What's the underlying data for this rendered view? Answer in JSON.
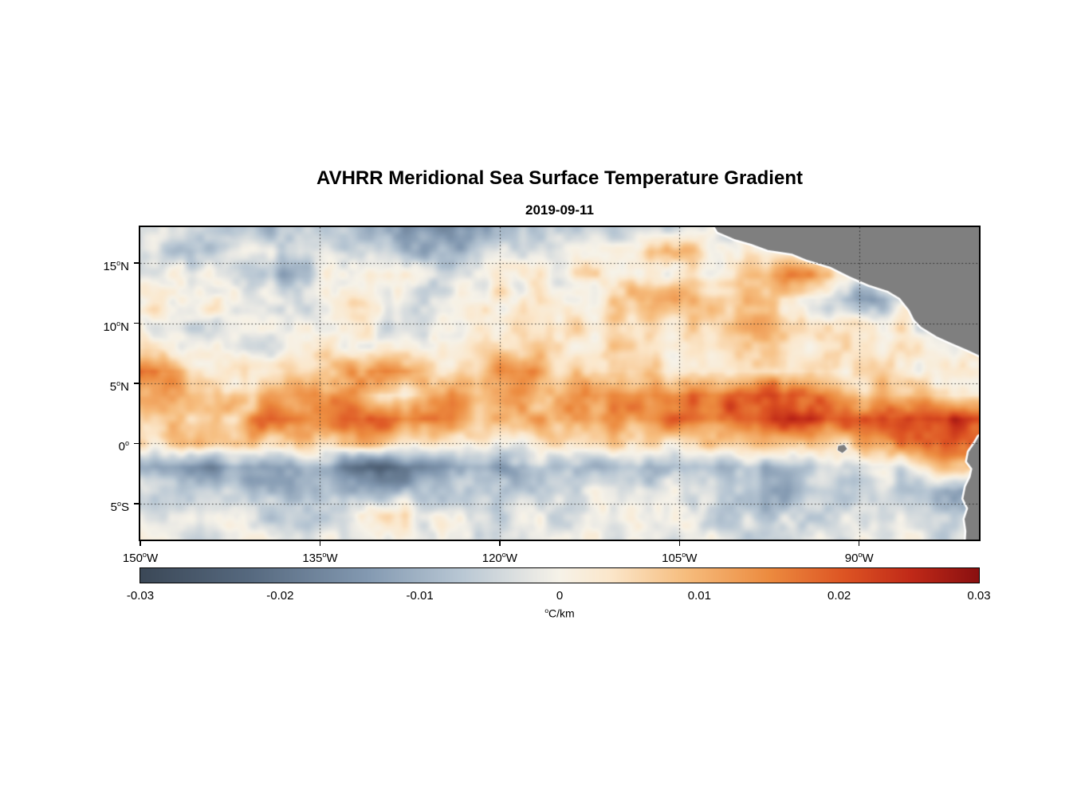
{
  "chart_data": {
    "type": "heatmap",
    "title": "AVHRR Meridional Sea Surface Temperature Gradient",
    "subtitle": "2019-09-11",
    "lon_range": [
      -150,
      -80
    ],
    "lat_range": [
      -8,
      18
    ],
    "x_axis": {
      "ticks": [
        {
          "value": -150,
          "label": "150°W"
        },
        {
          "value": -135,
          "label": "135°W"
        },
        {
          "value": -120,
          "label": "120°W"
        },
        {
          "value": -105,
          "label": "105°W"
        },
        {
          "value": -90,
          "label": "90°W"
        }
      ]
    },
    "y_axis": {
      "ticks": [
        {
          "value": 15,
          "label": "15°N"
        },
        {
          "value": 10,
          "label": "10°N"
        },
        {
          "value": 5,
          "label": "5°N"
        },
        {
          "value": 0,
          "label": "0°"
        },
        {
          "value": -5,
          "label": "5°S"
        }
      ]
    },
    "colorbar": {
      "range": [
        -0.03,
        0.03
      ],
      "values": [
        -0.03,
        -0.02,
        -0.01,
        0,
        0.01,
        0.02,
        0.03
      ],
      "labels": [
        "-0.03",
        "-0.02",
        "-0.01",
        "0",
        "0.01",
        "0.02",
        "0.03"
      ],
      "label": "°C/km"
    },
    "colormap": [
      {
        "t": 0.0,
        "color": "#3b4857"
      },
      {
        "t": 0.13,
        "color": "#56697f"
      },
      {
        "t": 0.27,
        "color": "#8399b1"
      },
      {
        "t": 0.38,
        "color": "#b7c6d3"
      },
      {
        "t": 0.47,
        "color": "#e8e8e4"
      },
      {
        "t": 0.5,
        "color": "#f6f2e8"
      },
      {
        "t": 0.56,
        "color": "#fbe7cb"
      },
      {
        "t": 0.65,
        "color": "#f6bd7e"
      },
      {
        "t": 0.75,
        "color": "#ec8b3f"
      },
      {
        "t": 0.84,
        "color": "#dd5423"
      },
      {
        "t": 0.92,
        "color": "#c02918"
      },
      {
        "t": 1.0,
        "color": "#8a1010"
      }
    ],
    "field": {
      "description": "Meridional SST gradient sampled on a regular lon/lat grid; values are gradient x 1000 in °C/km",
      "lon_start": -150,
      "lon_step": 2,
      "lat_start": 18,
      "lat_step": -2,
      "scale": 0.001,
      "units": "°C/km",
      "values": [
        [
          -3,
          -4,
          -3,
          -5,
          -8,
          -9,
          -6,
          -4,
          -5,
          -7,
          -9,
          -12,
          -16,
          -18,
          -16,
          -12,
          -7,
          -6,
          -4,
          -3,
          -4,
          -5,
          -4,
          -3,
          -2,
          -1,
          0,
          0,
          1,
          1,
          0,
          0,
          0,
          0,
          0,
          0
        ],
        [
          -4,
          -6,
          -8,
          -7,
          -5,
          -4,
          -3,
          -2,
          -2,
          -3,
          -5,
          -8,
          -10,
          -10,
          -8,
          -5,
          -2,
          0,
          1,
          0,
          2,
          5,
          10,
          6,
          3,
          2,
          1,
          0,
          0,
          0,
          0,
          0,
          0,
          0,
          0,
          0
        ],
        [
          -2,
          -1,
          0,
          -2,
          -4,
          -6,
          -10,
          -6,
          0,
          4,
          5,
          2,
          -2,
          -4,
          -3,
          -1,
          0,
          1,
          0,
          2,
          4,
          3,
          2,
          3,
          4,
          6,
          10,
          14,
          12,
          6,
          0,
          0,
          0,
          0,
          0,
          0
        ],
        [
          0,
          1,
          2,
          1,
          0,
          -2,
          -3,
          -1,
          1,
          3,
          2,
          0,
          -1,
          0,
          1,
          2,
          3,
          2,
          1,
          2,
          6,
          10,
          12,
          10,
          8,
          10,
          8,
          4,
          0,
          -6,
          -12,
          -10,
          0,
          0,
          0,
          0
        ],
        [
          1,
          0,
          -1,
          -2,
          -4,
          -3,
          -1,
          1,
          2,
          1,
          -1,
          -3,
          -2,
          0,
          2,
          4,
          5,
          3,
          2,
          4,
          6,
          5,
          4,
          6,
          8,
          10,
          9,
          6,
          3,
          2,
          4,
          2,
          0,
          0,
          0,
          0
        ],
        [
          2,
          1,
          0,
          -1,
          -2,
          -1,
          0,
          2,
          3,
          2,
          0,
          -1,
          0,
          2,
          4,
          6,
          7,
          5,
          3,
          5,
          4,
          3,
          2,
          4,
          6,
          8,
          8,
          6,
          4,
          3,
          2,
          3,
          2,
          1,
          0,
          0
        ],
        [
          20,
          16,
          8,
          2,
          1,
          2,
          3,
          4,
          6,
          12,
          16,
          15,
          8,
          4,
          8,
          18,
          16,
          10,
          5,
          4,
          4,
          4,
          4,
          5,
          5,
          6,
          6,
          5,
          4,
          3,
          3,
          4,
          3,
          2,
          2,
          2
        ],
        [
          10,
          12,
          10,
          6,
          8,
          12,
          12,
          12,
          14,
          12,
          3,
          3,
          10,
          14,
          10,
          12,
          12,
          10,
          12,
          14,
          14,
          14,
          16,
          20,
          18,
          20,
          22,
          22,
          20,
          14,
          10,
          8,
          8,
          7,
          6,
          6
        ],
        [
          6,
          6,
          6,
          6,
          6,
          16,
          16,
          12,
          14,
          18,
          18,
          18,
          18,
          16,
          10,
          8,
          8,
          12,
          14,
          12,
          12,
          14,
          16,
          18,
          16,
          20,
          22,
          24,
          24,
          20,
          18,
          20,
          22,
          24,
          26,
          24
        ],
        [
          4,
          5,
          7,
          8,
          8,
          8,
          6,
          5,
          7,
          8,
          8,
          7,
          6,
          4,
          3,
          2,
          2,
          3,
          4,
          4,
          4,
          5,
          6,
          8,
          6,
          8,
          12,
          10,
          8,
          6,
          10,
          14,
          16,
          18,
          20,
          16
        ],
        [
          -8,
          -12,
          -16,
          -18,
          -14,
          -10,
          -10,
          -12,
          -14,
          -20,
          -22,
          -20,
          -14,
          -10,
          -12,
          -14,
          -12,
          -8,
          -6,
          -8,
          -8,
          -10,
          -8,
          -6,
          -8,
          -8,
          -10,
          -8,
          -6,
          -4,
          -6,
          -4,
          0,
          4,
          8,
          6
        ],
        [
          -4,
          -5,
          -8,
          -6,
          -5,
          -8,
          -10,
          -12,
          -10,
          -12,
          -10,
          -8,
          -6,
          -6,
          -8,
          -8,
          -8,
          -6,
          -4,
          -3,
          -4,
          -4,
          -4,
          -3,
          -4,
          -6,
          -10,
          -12,
          -8,
          -6,
          -4,
          -4,
          -5,
          -8,
          -14,
          -10
        ],
        [
          -2,
          -3,
          -4,
          -3,
          -2,
          -3,
          -4,
          -5,
          -3,
          2,
          5,
          4,
          0,
          -3,
          -4,
          -3,
          -2,
          -3,
          -4,
          -2,
          -2,
          -3,
          -2,
          -2,
          -3,
          -5,
          -8,
          -6,
          -4,
          -3,
          -2,
          -3,
          -4,
          -5,
          -6,
          -4
        ],
        [
          -2,
          -2,
          -3,
          -2,
          -1,
          -2,
          -3,
          -2,
          -1,
          0,
          1,
          0,
          -1,
          -2,
          -2,
          -1,
          0,
          -1,
          -2,
          -1,
          -1,
          -2,
          -1,
          -1,
          -2,
          -3,
          -4,
          -3,
          -2,
          -2,
          -1,
          -2,
          -2,
          -3,
          -3,
          -2
        ]
      ]
    },
    "land": {
      "color": "#7f7f7f",
      "outline": "#ffffff",
      "features": [
        {
          "name": "central-america",
          "outline_width": 5,
          "polygon": [
            [
              -102.4,
              18.6
            ],
            [
              -101.8,
              17.6
            ],
            [
              -100.4,
              17.0
            ],
            [
              -99.0,
              16.6
            ],
            [
              -97.6,
              16.1
            ],
            [
              -95.6,
              15.8
            ],
            [
              -94.4,
              15.3
            ],
            [
              -92.4,
              14.7
            ],
            [
              -90.8,
              13.9
            ],
            [
              -89.2,
              13.2
            ],
            [
              -87.6,
              12.7
            ],
            [
              -86.6,
              12.1
            ],
            [
              -85.8,
              11.1
            ],
            [
              -85.4,
              10.3
            ],
            [
              -84.8,
              9.7
            ],
            [
              -83.5,
              8.9
            ],
            [
              -82.4,
              8.4
            ],
            [
              -81.0,
              7.8
            ],
            [
              -79.5,
              7.1
            ],
            [
              -79.0,
              6.9
            ],
            [
              -79.0,
              18.6
            ]
          ]
        },
        {
          "name": "south-america",
          "outline_width": 5,
          "polygon": [
            [
              -79.0,
              0.9
            ],
            [
              -80.0,
              0.6
            ],
            [
              -80.3,
              0.1
            ],
            [
              -80.85,
              -0.7
            ],
            [
              -81.0,
              -1.5
            ],
            [
              -80.55,
              -2.1
            ],
            [
              -80.7,
              -2.8
            ],
            [
              -81.1,
              -3.6
            ],
            [
              -81.3,
              -4.6
            ],
            [
              -80.9,
              -5.4
            ],
            [
              -81.2,
              -6.3
            ],
            [
              -81.05,
              -7.3
            ],
            [
              -81.15,
              -8.8
            ],
            [
              -78.8,
              -8.8
            ]
          ]
        },
        {
          "name": "galapagos-islands",
          "outline_width": 2,
          "polygon": [
            [
              -91.75,
              -0.2
            ],
            [
              -91.25,
              -0.1
            ],
            [
              -91.0,
              -0.45
            ],
            [
              -91.4,
              -0.8
            ],
            [
              -91.8,
              -0.55
            ]
          ]
        }
      ]
    }
  }
}
